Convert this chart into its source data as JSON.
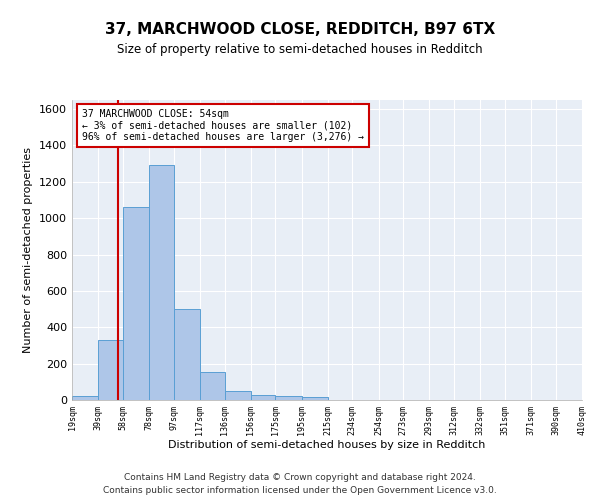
{
  "title_line1": "37, MARCHWOOD CLOSE, REDDITCH, B97 6TX",
  "title_line2": "Size of property relative to semi-detached houses in Redditch",
  "xlabel": "Distribution of semi-detached houses by size in Redditch",
  "ylabel": "Number of semi-detached properties",
  "footer_line1": "Contains HM Land Registry data © Crown copyright and database right 2024.",
  "footer_line2": "Contains public sector information licensed under the Open Government Licence v3.0.",
  "annotation_title": "37 MARCHWOOD CLOSE: 54sqm",
  "annotation_line1": "← 3% of semi-detached houses are smaller (102)",
  "annotation_line2": "96% of semi-detached houses are larger (3,276) →",
  "property_size": 54,
  "bin_edges": [
    19,
    39,
    58,
    78,
    97,
    117,
    136,
    156,
    175,
    195,
    215,
    234,
    254,
    273,
    293,
    312,
    332,
    351,
    371,
    390,
    410
  ],
  "bar_heights": [
    20,
    330,
    1060,
    1290,
    500,
    155,
    47,
    27,
    20,
    15,
    0,
    0,
    0,
    0,
    0,
    0,
    0,
    0,
    0,
    0
  ],
  "bar_color": "#aec6e8",
  "bar_edge_color": "#5a9fd4",
  "vline_color": "#cc0000",
  "annotation_box_color": "#cc0000",
  "background_color": "#e8eef6",
  "ylim": [
    0,
    1650
  ],
  "yticks": [
    0,
    200,
    400,
    600,
    800,
    1000,
    1200,
    1400,
    1600
  ]
}
